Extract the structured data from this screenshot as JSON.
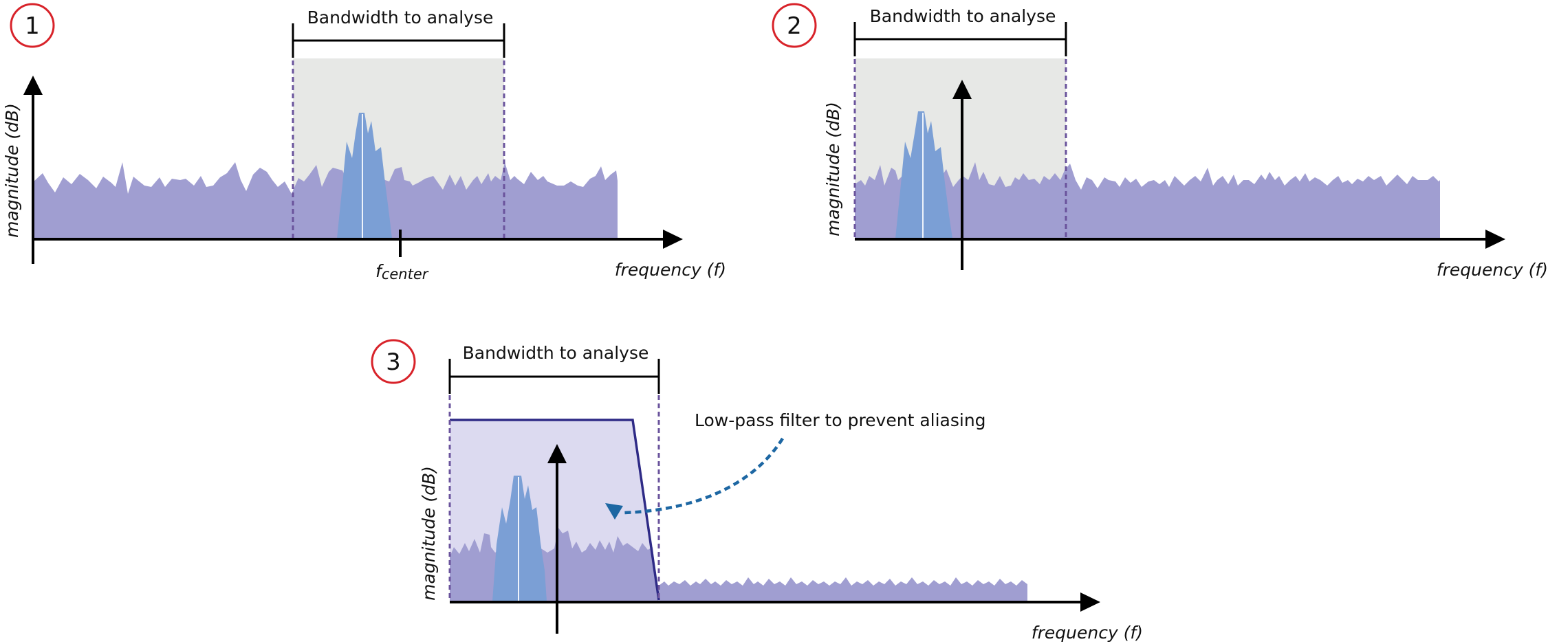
{
  "colors": {
    "noise": "#a09ed1",
    "signal": "#7b9fd5",
    "band_fill": "#e7e8e6",
    "filter_fill": "#dcdaf0",
    "filter_line": "#2e2a86",
    "dashed_bound": "#6a539c",
    "callout_arrow": "#1d67a3",
    "badge_ring": "#d8232a",
    "axis": "#000000"
  },
  "panels": [
    {
      "number": "1",
      "band_label": "Bandwidth to analyse",
      "y_axis_label": "magnitude (dB)",
      "x_axis_label": "frequency (f)",
      "center_label_main": "f",
      "center_label_sub": "center"
    },
    {
      "number": "2",
      "band_label": "Bandwidth to analyse",
      "y_axis_label": "magnitude (dB)",
      "x_axis_label": "frequency (f)"
    },
    {
      "number": "3",
      "band_label": "Bandwidth to analyse",
      "y_axis_label": "magnitude (dB)",
      "x_axis_label": "frequency (f)",
      "filter_label": "Low-pass filter to prevent aliasing"
    }
  ]
}
